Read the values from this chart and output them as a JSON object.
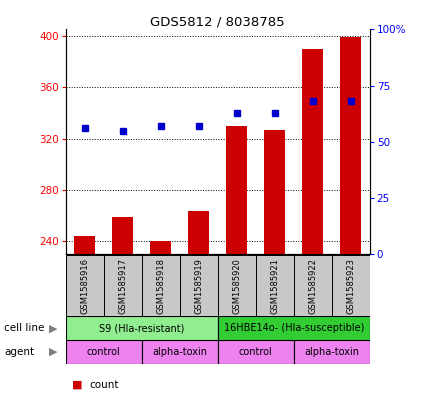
{
  "title": "GDS5812 / 8038785",
  "samples": [
    "GSM1585916",
    "GSM1585917",
    "GSM1585918",
    "GSM1585919",
    "GSM1585920",
    "GSM1585921",
    "GSM1585922",
    "GSM1585923"
  ],
  "counts": [
    244,
    259,
    240,
    264,
    330,
    327,
    390,
    399
  ],
  "percentiles": [
    56,
    55,
    57,
    57,
    63,
    63,
    68,
    68
  ],
  "ylim_left": [
    230,
    405
  ],
  "ylim_right": [
    0,
    100
  ],
  "yticks_left": [
    240,
    280,
    320,
    360,
    400
  ],
  "yticks_right": [
    0,
    25,
    50,
    75,
    100
  ],
  "ytick_labels_right": [
    "0",
    "25",
    "50",
    "75",
    "100%"
  ],
  "cell_line_groups": [
    {
      "label": "S9 (Hla-resistant)",
      "start": 0,
      "end": 3,
      "color": "#90EE90"
    },
    {
      "label": "16HBE14o- (Hla-susceptible)",
      "start": 4,
      "end": 7,
      "color": "#32CD32"
    }
  ],
  "agent_groups": [
    {
      "label": "control",
      "start": 0,
      "end": 1,
      "color": "#EE82EE"
    },
    {
      "label": "alpha-toxin",
      "start": 2,
      "end": 3,
      "color": "#EE82EE"
    },
    {
      "label": "control",
      "start": 4,
      "end": 5,
      "color": "#EE82EE"
    },
    {
      "label": "alpha-toxin",
      "start": 6,
      "end": 7,
      "color": "#EE82EE"
    }
  ],
  "bar_color": "#CC0000",
  "dot_color": "#0000CC",
  "bar_bottom": 230,
  "legend_count_color": "#CC0000",
  "legend_pct_color": "#0000CC",
  "background_color": "#FFFFFF",
  "plot_bg_color": "#FFFFFF",
  "label_bg_color": "#C8C8C8",
  "cell_line_color_light": "#90EE90",
  "cell_line_color_dark": "#32CD32",
  "agent_color": "#EE82EE"
}
